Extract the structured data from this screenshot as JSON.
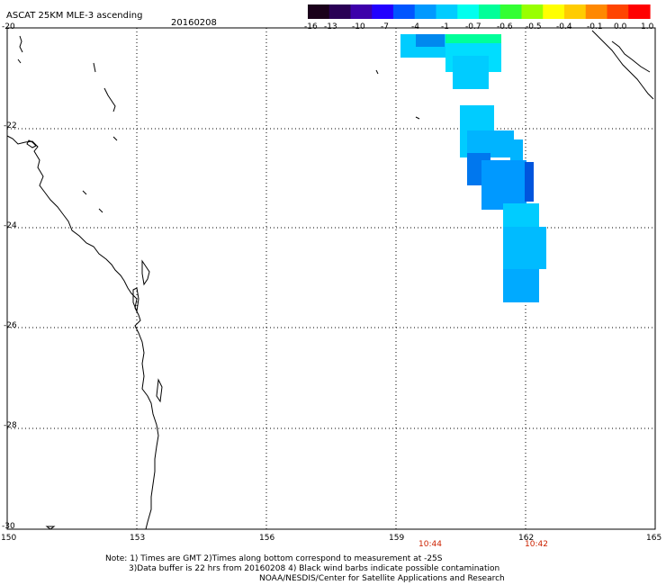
{
  "title": "ASCAT 25KM MLE-3 ascending",
  "date": "20160208",
  "colorbar": {
    "labels": [
      "-16",
      "-13",
      "-10",
      "-7",
      "-4",
      "-1",
      "-0.7",
      "-0.6",
      "-0.5",
      "-0.4",
      "-0.1",
      "0.0",
      "1.0"
    ],
    "colors": [
      "#1a001a",
      "#2a0055",
      "#3d00aa",
      "#2200ff",
      "#0055ff",
      "#0099ff",
      "#00ccff",
      "#00ffee",
      "#00ff99",
      "#33ff33",
      "#99ff00",
      "#ffff00",
      "#ffcc00",
      "#ff8800",
      "#ff4400",
      "#ff0000"
    ]
  },
  "axes": {
    "y_labels": [
      "-20",
      "-22",
      "-24",
      "-26",
      "-28",
      "-30"
    ],
    "x_labels": [
      "150",
      "153",
      "156",
      "159",
      "162",
      "165"
    ],
    "lat_range": [
      -30,
      -20
    ],
    "lon_range": [
      150,
      165
    ]
  },
  "times": [
    "10:44",
    "10:42"
  ],
  "notes": {
    "line1": "Note: 1) Times are GMT 2)Times along bottom correspond to measurement at -25S",
    "line2": "3)Data buffer is 22 hrs from 20160208 4) Black wind barbs indicate possible contamination",
    "line3": "NOAA/NESDIS/Center for Satellite Applications and Research"
  }
}
